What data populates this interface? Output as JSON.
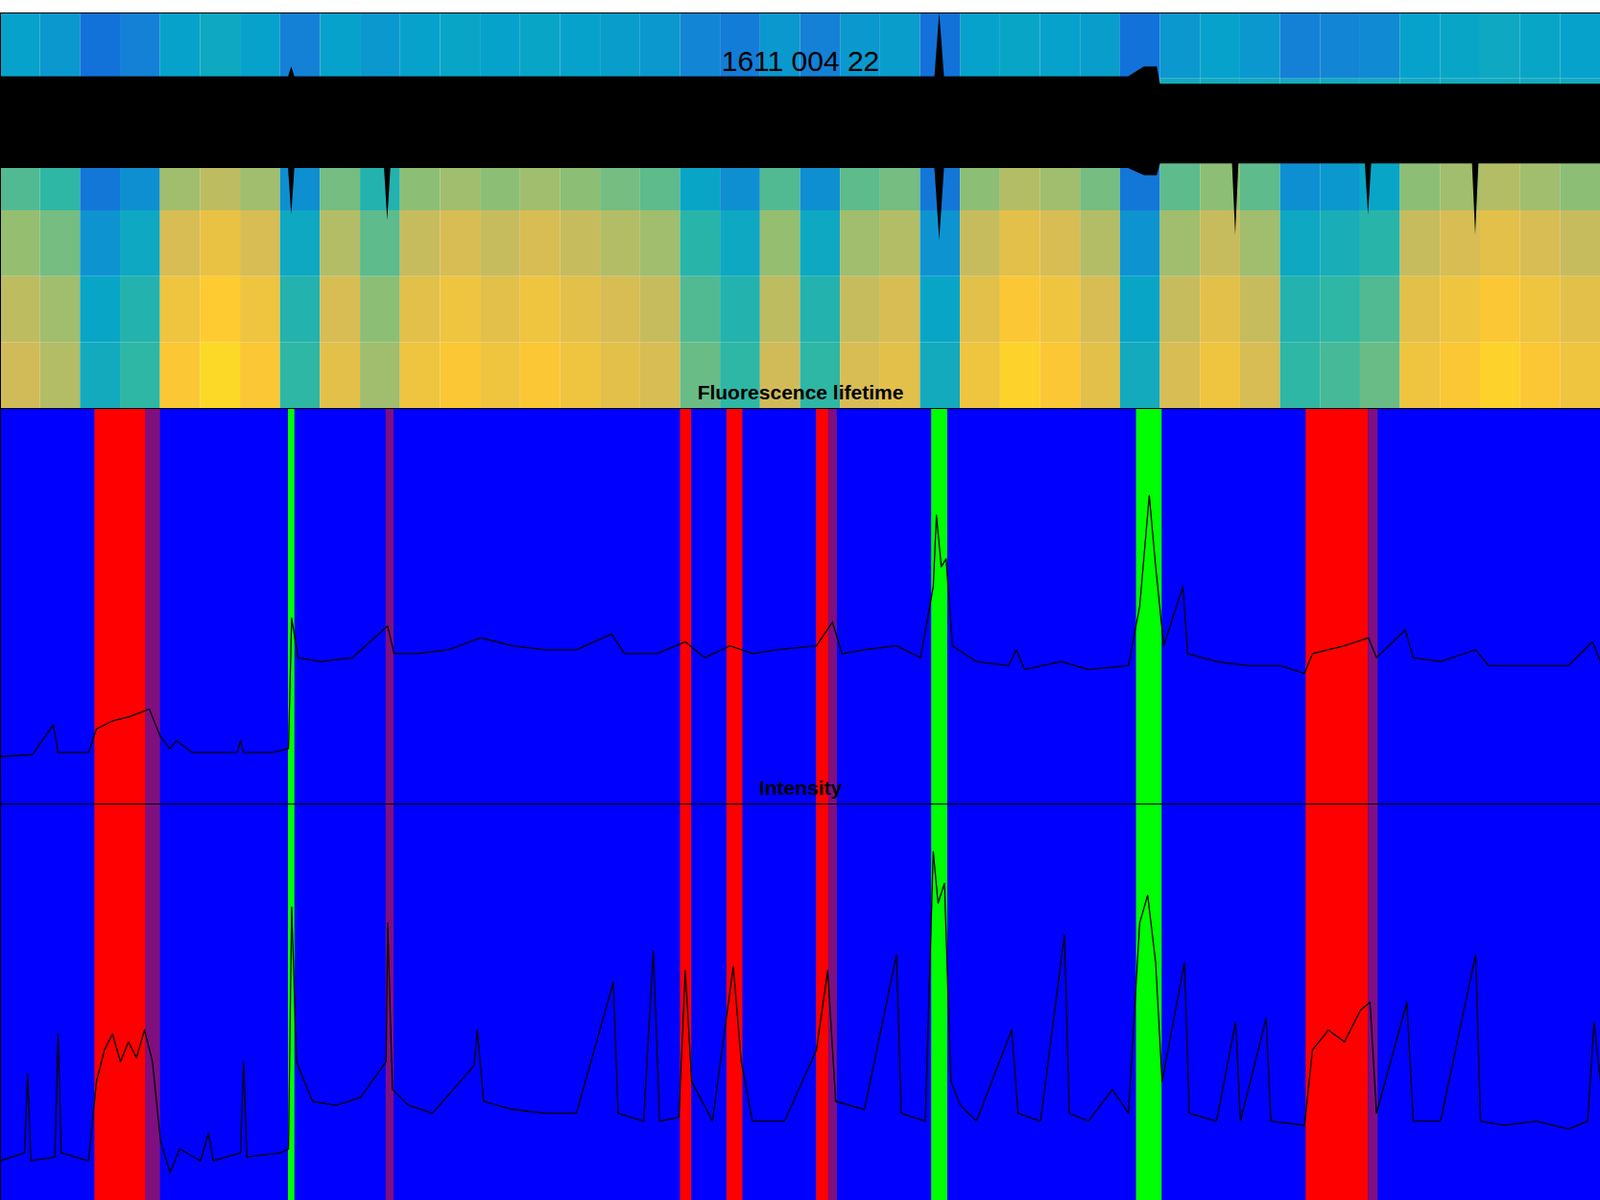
{
  "chart_data": [
    {
      "type": "heatmap",
      "title": "1611 004 22",
      "xlim": [
        0,
        100
      ],
      "ylim": [
        0,
        6
      ],
      "tick_labels": false,
      "grid": false,
      "x_edges": [
        0,
        2.5,
        5,
        7.5,
        10,
        12.5,
        15,
        17.5,
        20,
        22.5,
        25,
        27.5,
        30,
        32.5,
        35,
        37.5,
        40,
        42.5,
        45,
        47.5,
        50,
        52.5,
        55,
        57.5,
        60,
        62.5,
        65,
        67.5,
        70,
        72.5,
        75,
        77.5,
        80,
        82.5,
        85,
        87.5,
        90,
        92.5,
        95,
        97.5,
        100
      ],
      "y_edges": [
        0,
        1,
        2,
        3,
        4,
        5,
        6
      ],
      "zlim": [
        0.2,
        0.8
      ],
      "cells": [
        [
          0.65,
          0.62,
          0.45,
          0.5,
          0.72,
          0.75,
          0.72,
          0.5,
          0.68,
          0.6,
          0.7,
          0.72,
          0.7,
          0.72,
          0.7,
          0.68,
          0.66,
          0.55,
          0.5,
          0.65,
          0.5,
          0.66,
          0.68,
          0.45,
          0.7,
          0.74,
          0.72,
          0.68,
          0.45,
          0.66,
          0.7,
          0.66,
          0.5,
          0.52,
          0.55,
          0.7,
          0.72,
          0.74,
          0.72,
          0.7
        ],
        [
          0.63,
          0.6,
          0.43,
          0.48,
          0.7,
          0.73,
          0.7,
          0.48,
          0.66,
          0.58,
          0.68,
          0.7,
          0.68,
          0.7,
          0.68,
          0.66,
          0.64,
          0.53,
          0.48,
          0.63,
          0.48,
          0.64,
          0.66,
          0.43,
          0.68,
          0.72,
          0.7,
          0.66,
          0.43,
          0.64,
          0.68,
          0.64,
          0.48,
          0.5,
          0.53,
          0.68,
          0.7,
          0.72,
          0.7,
          0.68
        ],
        [
          0.59,
          0.56,
          0.39,
          0.44,
          0.66,
          0.69,
          0.66,
          0.44,
          0.62,
          0.54,
          0.64,
          0.66,
          0.64,
          0.66,
          0.64,
          0.62,
          0.6,
          0.49,
          0.44,
          0.59,
          0.44,
          0.6,
          0.62,
          0.39,
          0.64,
          0.68,
          0.66,
          0.62,
          0.39,
          0.6,
          0.64,
          0.6,
          0.44,
          0.46,
          0.49,
          0.64,
          0.66,
          0.68,
          0.66,
          0.64
        ],
        [
          0.53,
          0.5,
          0.33,
          0.38,
          0.6,
          0.63,
          0.6,
          0.38,
          0.56,
          0.48,
          0.58,
          0.6,
          0.58,
          0.6,
          0.58,
          0.56,
          0.54,
          0.43,
          0.38,
          0.53,
          0.38,
          0.54,
          0.56,
          0.33,
          0.58,
          0.62,
          0.6,
          0.56,
          0.33,
          0.54,
          0.58,
          0.54,
          0.38,
          0.4,
          0.43,
          0.58,
          0.6,
          0.62,
          0.6,
          0.58
        ],
        [
          0.45,
          0.45,
          0.45,
          0.45,
          0.45,
          0.45,
          0.45,
          0.45,
          0.45,
          0.45,
          0.45,
          0.45,
          0.45,
          0.45,
          0.45,
          0.45,
          0.45,
          0.45,
          0.45,
          0.45,
          0.45,
          0.45,
          0.45,
          0.45,
          0.45,
          0.45,
          0.45,
          0.45,
          0.45,
          0.45,
          0.45,
          0.45,
          0.45,
          0.45,
          0.45,
          0.45,
          0.45,
          0.45,
          0.45,
          0.45
        ],
        [
          0.42,
          0.4,
          0.32,
          0.35,
          0.42,
          0.44,
          0.42,
          0.35,
          0.42,
          0.4,
          0.42,
          0.43,
          0.42,
          0.43,
          0.42,
          0.41,
          0.4,
          0.36,
          0.34,
          0.4,
          0.35,
          0.4,
          0.41,
          0.32,
          0.42,
          0.43,
          0.42,
          0.41,
          0.32,
          0.4,
          0.42,
          0.4,
          0.35,
          0.36,
          0.37,
          0.42,
          0.43,
          0.44,
          0.43,
          0.42
        ]
      ],
      "trace": {
        "color": "#000000",
        "x": [
          0,
          18,
          18.2,
          18.4,
          24,
          24.2,
          24.4,
          58.4,
          58.7,
          59,
          70.5,
          71.5,
          72.3,
          72.5,
          77,
          77.2,
          77.4,
          85.3,
          85.5,
          85.7,
          92,
          92.2,
          92.4,
          100
        ],
        "low": [
          3.64,
          3.64,
          2.93,
          3.64,
          3.64,
          2.85,
          3.64,
          3.64,
          2.55,
          3.64,
          3.64,
          3.53,
          3.53,
          3.71,
          3.71,
          2.63,
          3.71,
          3.71,
          2.93,
          3.71,
          3.71,
          2.63,
          3.71,
          3.71
        ],
        "high": [
          5.03,
          5.03,
          5.18,
          5.03,
          5.03,
          5.03,
          5.03,
          5.03,
          6,
          5.03,
          5.03,
          5.18,
          5.18,
          4.92,
          4.92,
          4.92,
          4.92,
          4.92,
          4.92,
          4.92,
          4.92,
          4.92,
          4.92,
          4.92
        ]
      }
    },
    {
      "type": "line",
      "title": "Fluorescence lifetime",
      "xlim": [
        0,
        100
      ],
      "ylim": [
        0,
        1
      ],
      "tick_labels": false,
      "grid": false,
      "color": "#000000",
      "bands": [
        {
          "start": 0,
          "end": 100,
          "color": "#0000ff"
        },
        {
          "start": 5.9,
          "end": 9.1,
          "color": "#ff0000"
        },
        {
          "start": 9.1,
          "end": 10.0,
          "color": "#7f0f7f"
        },
        {
          "start": 18.0,
          "end": 18.4,
          "color": "#00ff00"
        },
        {
          "start": 24.1,
          "end": 24.6,
          "color": "#7f0f7f"
        },
        {
          "start": 42.5,
          "end": 43.2,
          "color": "#ff0000"
        },
        {
          "start": 45.4,
          "end": 46.4,
          "color": "#ff0000"
        },
        {
          "start": 51.0,
          "end": 51.8,
          "color": "#ff0000"
        },
        {
          "start": 51.8,
          "end": 52.3,
          "color": "#7f0f7f"
        },
        {
          "start": 58.2,
          "end": 59.2,
          "color": "#00ff00"
        },
        {
          "start": 71.0,
          "end": 72.6,
          "color": "#00ff00"
        },
        {
          "start": 81.6,
          "end": 85.5,
          "color": "#ff0000"
        },
        {
          "start": 85.5,
          "end": 86.1,
          "color": "#7f0f7f"
        }
      ],
      "x": [
        0,
        2,
        3.3,
        3.6,
        5.5,
        6,
        7,
        8,
        9.3,
        10,
        10.6,
        11,
        12,
        14.8,
        15,
        15.2,
        17,
        18,
        18.2,
        18.6,
        20,
        22,
        24.2,
        24.6,
        26,
        28,
        30,
        32,
        34,
        36,
        38.2,
        39,
        41,
        42.8,
        44,
        45.6,
        47,
        48.5,
        51,
        52,
        52.6,
        54,
        56,
        57.5,
        58.3,
        58.5,
        58.8,
        59.1,
        59.5,
        61,
        63,
        63.5,
        64,
        66.3,
        68,
        70.5,
        71.2,
        71.8,
        72.2,
        72.7,
        73.9,
        74.2,
        76,
        78,
        80,
        81.5,
        82,
        84,
        85.5,
        86,
        87.8,
        88.3,
        90,
        92.2,
        93,
        96,
        98,
        99.5,
        100
      ],
      "values": [
        0.12,
        0.125,
        0.2,
        0.13,
        0.13,
        0.19,
        0.21,
        0.22,
        0.24,
        0.17,
        0.14,
        0.16,
        0.13,
        0.13,
        0.16,
        0.13,
        0.13,
        0.14,
        0.47,
        0.37,
        0.36,
        0.37,
        0.45,
        0.38,
        0.38,
        0.39,
        0.42,
        0.4,
        0.39,
        0.39,
        0.43,
        0.38,
        0.38,
        0.41,
        0.37,
        0.4,
        0.38,
        0.39,
        0.4,
        0.46,
        0.38,
        0.39,
        0.4,
        0.37,
        0.55,
        0.73,
        0.6,
        0.62,
        0.4,
        0.36,
        0.35,
        0.39,
        0.34,
        0.36,
        0.34,
        0.35,
        0.5,
        0.78,
        0.6,
        0.4,
        0.55,
        0.38,
        0.36,
        0.35,
        0.35,
        0.33,
        0.38,
        0.4,
        0.42,
        0.37,
        0.44,
        0.37,
        0.36,
        0.39,
        0.35,
        0.35,
        0.35,
        0.41,
        0.36
      ]
    },
    {
      "type": "line",
      "title": "Intensity",
      "xlim": [
        0,
        100
      ],
      "ylim": [
        0,
        1
      ],
      "tick_labels": false,
      "grid": false,
      "color": "#000000",
      "bands": [
        {
          "start": 0,
          "end": 100,
          "color": "#0000ff"
        },
        {
          "start": 5.9,
          "end": 9.1,
          "color": "#ff0000"
        },
        {
          "start": 9.1,
          "end": 10.0,
          "color": "#7f0f7f"
        },
        {
          "start": 18.0,
          "end": 18.4,
          "color": "#00ff00"
        },
        {
          "start": 24.1,
          "end": 24.6,
          "color": "#7f0f7f"
        },
        {
          "start": 42.5,
          "end": 43.2,
          "color": "#ff0000"
        },
        {
          "start": 45.4,
          "end": 46.4,
          "color": "#ff0000"
        },
        {
          "start": 51.0,
          "end": 51.8,
          "color": "#ff0000"
        },
        {
          "start": 51.8,
          "end": 52.3,
          "color": "#7f0f7f"
        },
        {
          "start": 58.2,
          "end": 59.2,
          "color": "#00ff00"
        },
        {
          "start": 71.0,
          "end": 72.6,
          "color": "#00ff00"
        },
        {
          "start": 81.6,
          "end": 85.5,
          "color": "#ff0000"
        },
        {
          "start": 85.5,
          "end": 86.1,
          "color": "#7f0f7f"
        }
      ],
      "x": [
        0,
        1.5,
        1.7,
        1.9,
        3.4,
        3.6,
        3.8,
        5.5,
        6,
        6.5,
        7,
        7.5,
        8,
        8.5,
        9,
        9.5,
        10,
        10.6,
        11.2,
        12.5,
        13,
        13.3,
        15,
        15.2,
        15.4,
        17.5,
        18,
        18.2,
        18.5,
        19.5,
        21,
        22.5,
        24.1,
        24.2,
        24.5,
        25.5,
        27,
        29.6,
        29.8,
        30.2,
        32,
        34,
        36,
        38.3,
        38.6,
        40.2,
        40.8,
        41.2,
        42.4,
        42.8,
        43.2,
        44.5,
        45.5,
        45.8,
        46.3,
        47,
        49,
        51,
        51.7,
        52.2,
        54,
        56,
        56.3,
        57.8,
        58.3,
        58.6,
        59,
        59.4,
        60,
        61,
        63.2,
        63.6,
        65,
        66.5,
        66.8,
        68,
        69.5,
        70.5,
        71.2,
        71.7,
        72.2,
        72.6,
        74,
        74.3,
        76,
        77.2,
        77.5,
        79.1,
        79.4,
        81.5,
        82,
        83,
        84,
        85,
        85.6,
        86,
        87.9,
        88.3,
        90,
        92.2,
        92.5,
        94,
        96,
        98,
        99.2,
        99.6,
        100
      ],
      "values": [
        0.1,
        0.12,
        0.32,
        0.1,
        0.11,
        0.42,
        0.12,
        0.1,
        0.3,
        0.38,
        0.42,
        0.35,
        0.4,
        0.36,
        0.43,
        0.35,
        0.15,
        0.07,
        0.13,
        0.1,
        0.17,
        0.1,
        0.12,
        0.35,
        0.11,
        0.12,
        0.13,
        0.74,
        0.35,
        0.25,
        0.24,
        0.26,
        0.35,
        0.7,
        0.28,
        0.24,
        0.22,
        0.34,
        0.43,
        0.25,
        0.23,
        0.22,
        0.22,
        0.55,
        0.22,
        0.2,
        0.63,
        0.2,
        0.21,
        0.58,
        0.3,
        0.2,
        0.5,
        0.59,
        0.35,
        0.2,
        0.2,
        0.38,
        0.58,
        0.25,
        0.23,
        0.62,
        0.22,
        0.2,
        0.88,
        0.75,
        0.8,
        0.3,
        0.24,
        0.2,
        0.43,
        0.22,
        0.2,
        0.67,
        0.22,
        0.2,
        0.28,
        0.22,
        0.7,
        0.77,
        0.6,
        0.3,
        0.6,
        0.22,
        0.2,
        0.45,
        0.2,
        0.46,
        0.2,
        0.19,
        0.38,
        0.43,
        0.4,
        0.48,
        0.5,
        0.22,
        0.5,
        0.2,
        0.2,
        0.62,
        0.2,
        0.19,
        0.2,
        0.18,
        0.2,
        0.45,
        0.3
      ]
    }
  ]
}
